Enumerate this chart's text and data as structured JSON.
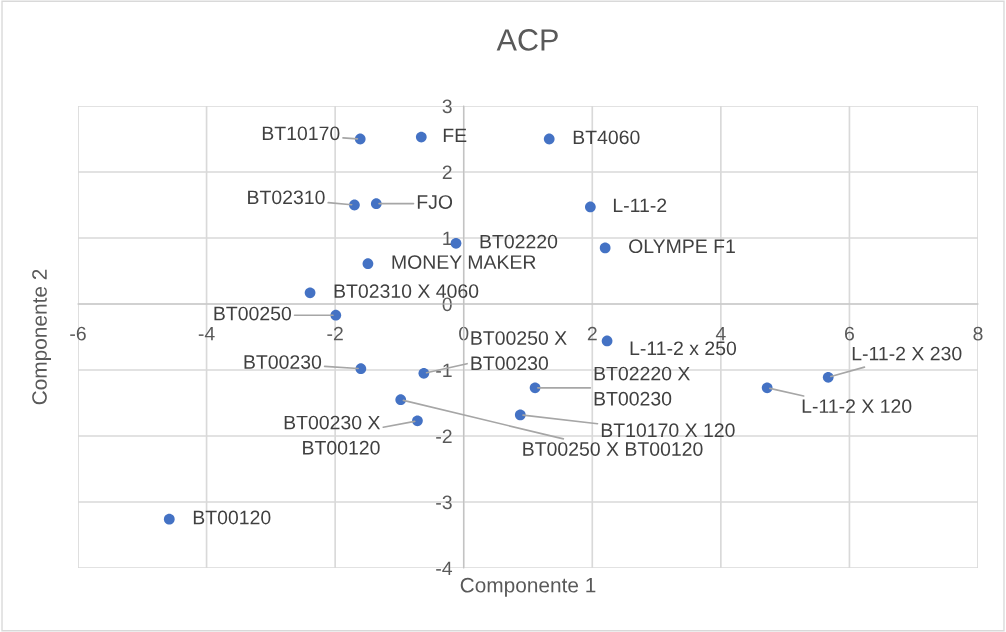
{
  "chart_data": {
    "type": "scatter",
    "title": "ACP",
    "xlabel": "Componente 1",
    "ylabel": "Componente 2",
    "x": [
      -1.61,
      -0.66,
      1.33,
      -1.7,
      -1.36,
      1.97,
      -0.12,
      2.2,
      -1.49,
      -2.39,
      -1.99,
      2.23,
      -0.62,
      -1.6,
      1.11,
      5.67,
      4.72,
      0.88,
      -0.98,
      -0.72,
      -4.58
    ],
    "values": [
      2.5,
      2.53,
      2.5,
      1.5,
      1.52,
      1.47,
      0.92,
      0.85,
      0.61,
      0.17,
      -0.17,
      -0.56,
      -1.05,
      -0.98,
      -1.27,
      -1.11,
      -1.27,
      -1.68,
      -1.45,
      -1.77,
      -3.26
    ],
    "color": "#4472c4",
    "marker": "circle",
    "grid": true,
    "xlim": [
      -6,
      8
    ],
    "ylim": [
      -4,
      3
    ],
    "xticks": [
      -6,
      -4,
      -2,
      0,
      2,
      4,
      6,
      8
    ],
    "yticks": [
      -4,
      -3,
      -2,
      -1,
      0,
      1,
      2,
      3
    ],
    "annotations": [
      {
        "text": "BT10170",
        "x": -1.61,
        "y": 2.5
      },
      {
        "text": "FE",
        "x": -0.66,
        "y": 2.53
      },
      {
        "text": "BT4060",
        "x": 1.33,
        "y": 2.5
      },
      {
        "text": "BT02310",
        "x": -1.7,
        "y": 1.5
      },
      {
        "text": "FJO",
        "x": -1.36,
        "y": 1.52
      },
      {
        "text": "L-11-2",
        "x": 1.97,
        "y": 1.47
      },
      {
        "text": "BT02220",
        "x": -0.12,
        "y": 0.92
      },
      {
        "text": "OLYMPE F1",
        "x": 2.2,
        "y": 0.85
      },
      {
        "text": "MONEY MAKER",
        "x": -1.49,
        "y": 0.61
      },
      {
        "text": "BT02310 X 4060",
        "x": -2.39,
        "y": 0.17
      },
      {
        "text": "BT00250",
        "x": -1.99,
        "y": -0.17
      },
      {
        "text": "L-11-2 x 250",
        "x": 2.23,
        "y": -0.56
      },
      {
        "text": "BT00250 X\nBT00230",
        "x": -0.62,
        "y": -1.05
      },
      {
        "text": "BT00230",
        "x": -1.6,
        "y": -0.98
      },
      {
        "text": "BT02220 X\nBT00230",
        "x": 1.11,
        "y": -1.27
      },
      {
        "text": "L-11-2 X 230",
        "x": 5.67,
        "y": -1.11
      },
      {
        "text": "L-11-2 X 120",
        "x": 4.72,
        "y": -1.27
      },
      {
        "text": "BT10170 X 120",
        "x": 0.88,
        "y": -1.68
      },
      {
        "text": "BT00250 X BT00120",
        "x": -0.98,
        "y": -1.45
      },
      {
        "text": "BT00230 X\nBT00120",
        "x": -0.72,
        "y": -1.77
      },
      {
        "text": "BT00120",
        "x": -4.58,
        "y": -3.26
      }
    ]
  }
}
